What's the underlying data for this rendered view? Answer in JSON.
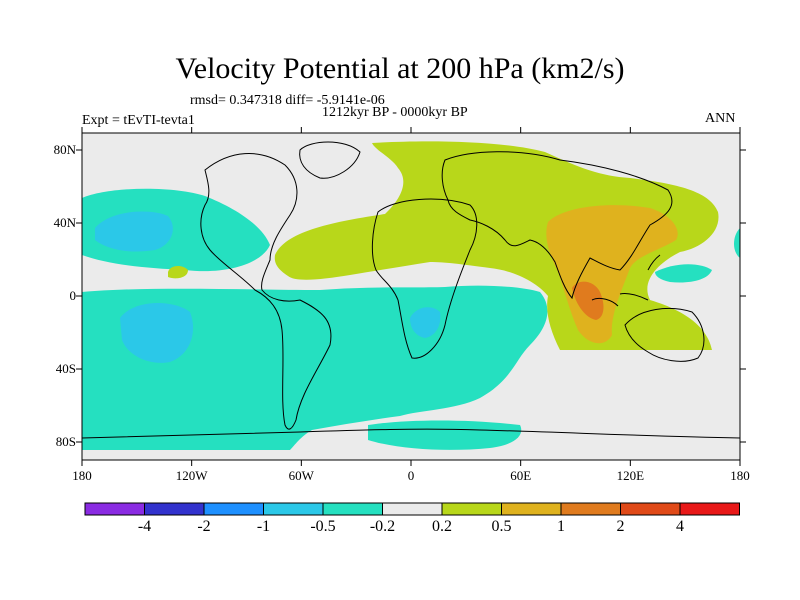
{
  "title": "Velocity Potential at 200 hPa (km2/s)",
  "stats": "rmsd= 0.347318 diff= -5.9141e-06",
  "period": "1212kyr BP - 0000kyr BP",
  "experiment": "Expt = tEvTI-tevta1",
  "season": "ANN",
  "lon_labels": [
    "180",
    "120W",
    "60W",
    "0",
    "60E",
    "120E",
    "180"
  ],
  "lat_labels": [
    "80N",
    "40N",
    "0",
    "40S",
    "80S"
  ],
  "colorbar": {
    "labels": [
      "-4",
      "-2",
      "-1",
      "-0.5",
      "-0.2",
      "0.2",
      "0.5",
      "1",
      "2",
      "4"
    ],
    "colors": [
      "#8a2be2",
      "#3232cd",
      "#1e90ff",
      "#2bc8e8",
      "#25e0c0",
      "#ebebeb",
      "#b8d71a",
      "#dfb21e",
      "#e07b1e",
      "#e04a18",
      "#e81818"
    ]
  },
  "field_colors": {
    "background": "#ebebeb",
    "neg_weak": "#25e0c0",
    "neg_mid": "#2bc8e8",
    "neg_strong": "#1e90ff",
    "pos_weak": "#b8d71a",
    "pos_mid": "#dfb21e",
    "pos_strong": "#e07b1e"
  }
}
